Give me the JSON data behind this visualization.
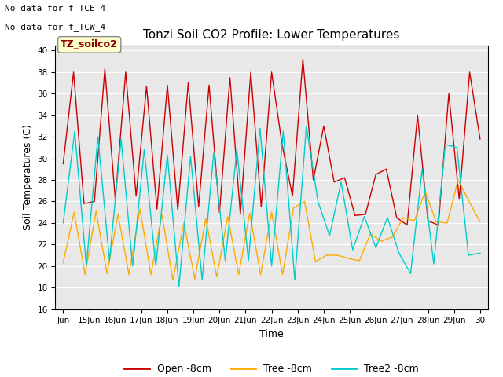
{
  "title": "Tonzi Soil CO2 Profile: Lower Temperatures",
  "ylabel": "Soil Temperatures (C)",
  "xlabel": "Time",
  "annotation_line1": "No data for f_TCE_4",
  "annotation_line2": "No data for f_TCW_4",
  "box_label": "TZ_soilco2",
  "ylim": [
    16,
    40.5
  ],
  "yticks": [
    16,
    18,
    20,
    22,
    24,
    26,
    28,
    30,
    32,
    34,
    36,
    38,
    40
  ],
  "xtick_labels": [
    "Jun",
    "15Jun",
    "16Jun",
    "17Jun",
    "18Jun",
    "19Jun",
    "20Jun",
    "21Jun",
    "22Jun",
    "23Jun",
    "24Jun",
    "25Jun",
    "26Jun",
    "27Jun",
    "28Jun",
    "29Jun",
    "30"
  ],
  "colors": {
    "open": "#cc0000",
    "tree": "#ffaa00",
    "tree2": "#00cccc"
  },
  "legend_labels": [
    "Open -8cm",
    "Tree -8cm",
    "Tree2 -8cm"
  ],
  "bg_color": "#e8e8e8",
  "open_8cm": [
    29.5,
    38.0,
    25.8,
    26.0,
    38.3,
    26.2,
    38.0,
    26.5,
    36.7,
    25.3,
    36.8,
    25.2,
    37.0,
    25.5,
    36.8,
    25.0,
    37.5,
    24.8,
    38.0,
    25.5,
    38.0,
    31.3,
    26.5,
    39.2,
    28.0,
    33.0,
    27.8,
    28.2,
    24.7,
    24.8,
    28.5,
    29.0,
    24.5,
    23.8,
    34.0,
    24.2,
    23.8,
    36.0,
    26.2,
    38.0,
    31.8
  ],
  "tree_8cm": [
    20.3,
    25.0,
    19.2,
    25.1,
    19.3,
    24.8,
    19.2,
    25.3,
    19.2,
    24.8,
    18.7,
    24.0,
    18.8,
    24.4,
    19.0,
    24.6,
    19.2,
    24.9,
    19.2,
    25.0,
    19.2,
    25.4,
    26.0,
    20.4,
    21.0,
    21.0,
    20.7,
    20.5,
    23.0,
    22.3,
    22.7,
    24.5,
    24.2,
    26.9,
    24.1,
    24.0,
    28.0,
    26.0,
    24.1
  ],
  "tree2_8cm": [
    24.0,
    32.5,
    20.0,
    32.0,
    20.5,
    31.8,
    20.0,
    30.8,
    20.0,
    30.3,
    18.1,
    30.2,
    18.7,
    30.5,
    20.5,
    30.8,
    20.5,
    32.8,
    20.0,
    32.5,
    18.7,
    33.0,
    26.0,
    22.8,
    27.8,
    21.5,
    24.6,
    21.7,
    24.5,
    21.2,
    19.3,
    29.0,
    20.2,
    31.3,
    31.0,
    21.0,
    21.2
  ]
}
